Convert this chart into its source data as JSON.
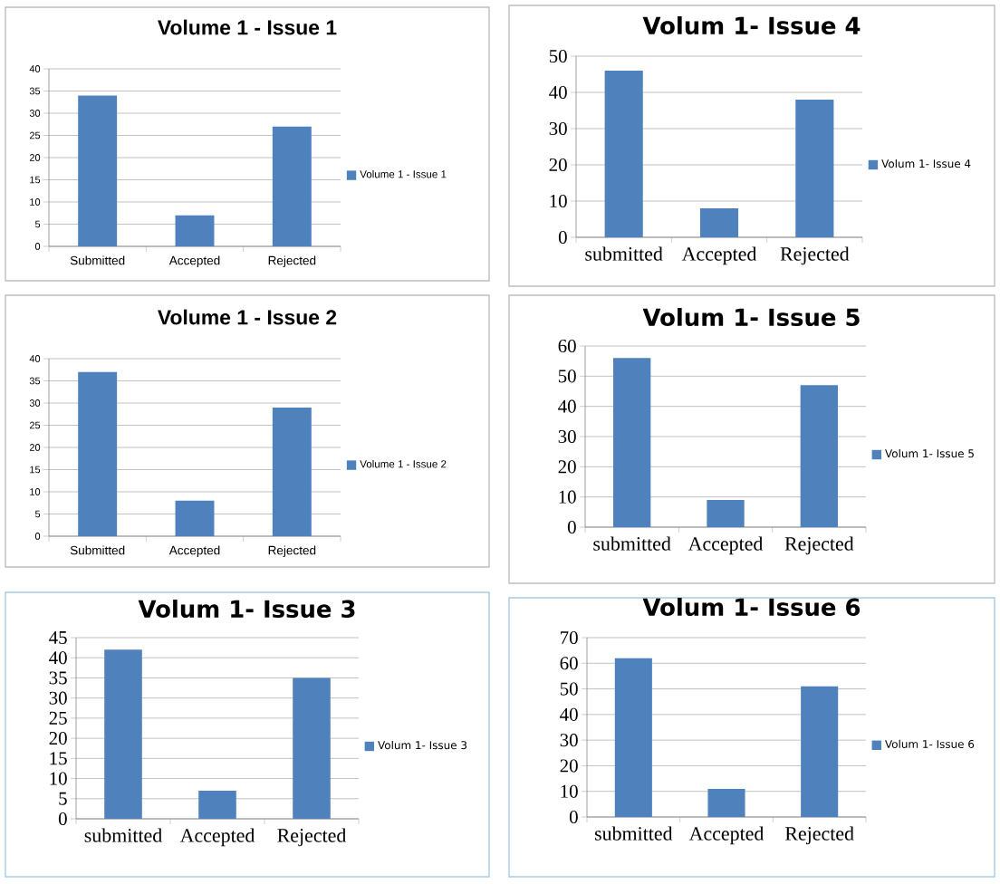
{
  "chart_data": [
    {
      "type": "bar",
      "title": "Volume 1 - Issue 1",
      "categories": [
        "Submitted",
        "Accepted",
        "Rejected"
      ],
      "series": [
        {
          "name": "Volume 1 - Issue 1",
          "color": "#4f81bd",
          "values": [
            34,
            7,
            27
          ]
        }
      ],
      "ylim": [
        0,
        40
      ],
      "yticks": [
        0,
        5,
        10,
        15,
        20,
        25,
        30,
        35,
        40
      ],
      "grid": "y",
      "legend": "right"
    },
    {
      "type": "bar",
      "title": "Volum 1- Issue 4",
      "categories": [
        "submitted",
        "Accepted",
        "Rejected"
      ],
      "series": [
        {
          "name": "Volum 1- Issue 4",
          "color": "#4f81bd",
          "values": [
            46,
            8,
            38
          ]
        }
      ],
      "ylim": [
        0,
        50
      ],
      "yticks": [
        0,
        10,
        20,
        30,
        40,
        50
      ],
      "grid": "y",
      "legend": "right"
    },
    {
      "type": "bar",
      "title": "Volume 1 - Issue 2",
      "categories": [
        "Submitted",
        "Accepted",
        "Rejected"
      ],
      "series": [
        {
          "name": "Volume 1 - Issue 2",
          "color": "#4f81bd",
          "values": [
            37,
            8,
            29
          ]
        }
      ],
      "ylim": [
        0,
        40
      ],
      "yticks": [
        0,
        5,
        10,
        15,
        20,
        25,
        30,
        35,
        40
      ],
      "grid": "y",
      "legend": "right"
    },
    {
      "type": "bar",
      "title": "Volum 1- Issue 5",
      "categories": [
        "submitted",
        "Accepted",
        "Rejected"
      ],
      "series": [
        {
          "name": "Volum 1- Issue 5",
          "color": "#4f81bd",
          "values": [
            56,
            9,
            47
          ]
        }
      ],
      "ylim": [
        0,
        60
      ],
      "yticks": [
        0,
        10,
        20,
        30,
        40,
        50,
        60
      ],
      "grid": "y",
      "legend": "right"
    },
    {
      "type": "bar",
      "title": "Volum 1- Issue 3",
      "categories": [
        "submitted",
        "Accepted",
        "Rejected"
      ],
      "series": [
        {
          "name": "Volum 1- Issue 3",
          "color": "#4f81bd",
          "values": [
            42,
            7,
            35
          ]
        }
      ],
      "ylim": [
        0,
        45
      ],
      "yticks": [
        0,
        5,
        10,
        15,
        20,
        25,
        30,
        35,
        40,
        45
      ],
      "grid": "y",
      "legend": "right"
    },
    {
      "type": "bar",
      "title": "Volum 1- Issue 6",
      "categories": [
        "submitted",
        "Accepted",
        "Rejected"
      ],
      "series": [
        {
          "name": "Volum 1- Issue 6",
          "color": "#4f81bd",
          "values": [
            62,
            11,
            51
          ]
        }
      ],
      "ylim": [
        0,
        70
      ],
      "yticks": [
        0,
        10,
        20,
        30,
        40,
        50,
        60,
        70
      ],
      "grid": "y",
      "legend": "right"
    }
  ]
}
